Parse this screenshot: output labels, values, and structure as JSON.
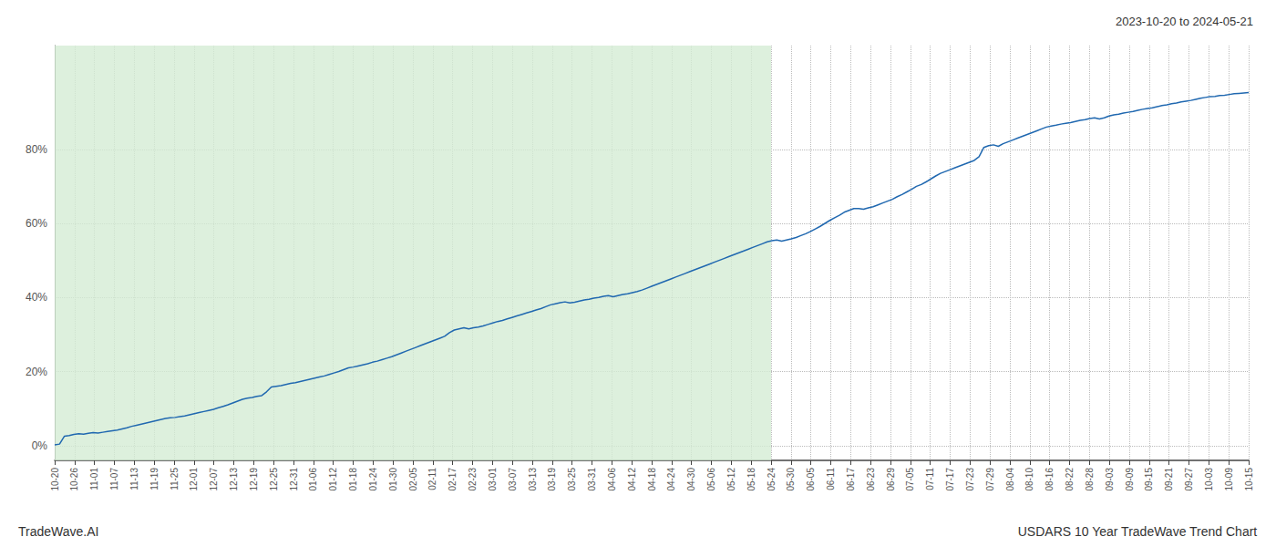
{
  "chart_data": {
    "type": "line",
    "title": "2023-10-20 to 2024-05-21",
    "annotations": [
      "TradeWave.AI",
      "USDARS 10 Year TradeWave Trend Chart"
    ],
    "color": "#2068b0",
    "grid": true,
    "shaded_region": {
      "from": 0,
      "to": 148.8,
      "color": "#d4ecd4"
    },
    "xlim": [
      0,
      248
    ],
    "xticks": [
      {
        "value": 0,
        "label": "10-20"
      },
      {
        "value": 4.133333,
        "label": "10-26"
      },
      {
        "value": 8.266667,
        "label": "11-01"
      },
      {
        "value": 12.4,
        "label": "11-07"
      },
      {
        "value": 16.533333,
        "label": "11-13"
      },
      {
        "value": 20.666667,
        "label": "11-19"
      },
      {
        "value": 24.8,
        "label": "11-25"
      },
      {
        "value": 28.933333,
        "label": "12-01"
      },
      {
        "value": 33.066667,
        "label": "12-07"
      },
      {
        "value": 37.2,
        "label": "12-13"
      },
      {
        "value": 41.333333,
        "label": "12-19"
      },
      {
        "value": 45.466667,
        "label": "12-25"
      },
      {
        "value": 49.6,
        "label": "12-31"
      },
      {
        "value": 53.733333,
        "label": "01-06"
      },
      {
        "value": 57.866667,
        "label": "01-12"
      },
      {
        "value": 62,
        "label": "01-18"
      },
      {
        "value": 66.133333,
        "label": "01-24"
      },
      {
        "value": 70.266667,
        "label": "01-30"
      },
      {
        "value": 74.4,
        "label": "02-05"
      },
      {
        "value": 78.533333,
        "label": "02-11"
      },
      {
        "value": 82.666667,
        "label": "02-17"
      },
      {
        "value": 86.8,
        "label": "02-23"
      },
      {
        "value": 90.933333,
        "label": "03-01"
      },
      {
        "value": 95.066667,
        "label": "03-07"
      },
      {
        "value": 99.2,
        "label": "03-13"
      },
      {
        "value": 103.333333,
        "label": "03-19"
      },
      {
        "value": 107.466667,
        "label": "03-25"
      },
      {
        "value": 111.6,
        "label": "03-31"
      },
      {
        "value": 115.733333,
        "label": "04-06"
      },
      {
        "value": 119.866667,
        "label": "04-12"
      },
      {
        "value": 124,
        "label": "04-18"
      },
      {
        "value": 128.133333,
        "label": "04-24"
      },
      {
        "value": 132.266667,
        "label": "04-30"
      },
      {
        "value": 136.4,
        "label": "05-06"
      },
      {
        "value": 140.533333,
        "label": "05-12"
      },
      {
        "value": 144.666667,
        "label": "05-18"
      },
      {
        "value": 148.8,
        "label": "05-24"
      },
      {
        "value": 152.933333,
        "label": "05-30"
      },
      {
        "value": 157.066667,
        "label": "06-05"
      },
      {
        "value": 161.2,
        "label": "06-11"
      },
      {
        "value": 165.333333,
        "label": "06-17"
      },
      {
        "value": 169.466667,
        "label": "06-23"
      },
      {
        "value": 173.6,
        "label": "06-29"
      },
      {
        "value": 177.733333,
        "label": "07-05"
      },
      {
        "value": 181.866667,
        "label": "07-11"
      },
      {
        "value": 186,
        "label": "07-17"
      },
      {
        "value": 190.133333,
        "label": "07-23"
      },
      {
        "value": 194.266667,
        "label": "07-29"
      },
      {
        "value": 198.4,
        "label": "08-04"
      },
      {
        "value": 202.533333,
        "label": "08-10"
      },
      {
        "value": 206.666667,
        "label": "08-16"
      },
      {
        "value": 210.8,
        "label": "08-22"
      },
      {
        "value": 214.933333,
        "label": "08-28"
      },
      {
        "value": 219.066667,
        "label": "09-03"
      },
      {
        "value": 223.2,
        "label": "09-09"
      },
      {
        "value": 227.333333,
        "label": "09-15"
      },
      {
        "value": 231.466667,
        "label": "09-21"
      },
      {
        "value": 235.6,
        "label": "09-27"
      },
      {
        "value": 239.733333,
        "label": "10-03"
      },
      {
        "value": 243.866667,
        "label": "10-09"
      },
      {
        "value": 248,
        "label": "10-15"
      }
    ],
    "ylim": [
      -4,
      108
    ],
    "yticks": [
      {
        "value": 0,
        "label": "0%"
      },
      {
        "value": 20,
        "label": "20%"
      },
      {
        "value": 40,
        "label": "40%"
      },
      {
        "value": 60,
        "label": "60%"
      },
      {
        "value": 80,
        "label": "80%"
      }
    ],
    "x": [
      0,
      1,
      2,
      3,
      4,
      5,
      6,
      7,
      8,
      9,
      10,
      11,
      12,
      13,
      14,
      15,
      16,
      17,
      18,
      19,
      20,
      21,
      22,
      23,
      24,
      25,
      26,
      27,
      28,
      29,
      30,
      31,
      32,
      33,
      34,
      35,
      36,
      37,
      38,
      39,
      40,
      41,
      42,
      43,
      44,
      45,
      46,
      47,
      48,
      49,
      50,
      51,
      52,
      53,
      54,
      55,
      56,
      57,
      58,
      59,
      60,
      61,
      62,
      63,
      64,
      65,
      66,
      67,
      68,
      69,
      70,
      71,
      72,
      73,
      74,
      75,
      76,
      77,
      78,
      79,
      80,
      81,
      82,
      83,
      84,
      85,
      86,
      87,
      88,
      89,
      90,
      91,
      92,
      93,
      94,
      95,
      96,
      97,
      98,
      99,
      100,
      101,
      102,
      103,
      104,
      105,
      106,
      107,
      108,
      109,
      110,
      111,
      112,
      113,
      114,
      115,
      116,
      117,
      118,
      119,
      120,
      121,
      122,
      123,
      124,
      125,
      126,
      127,
      128,
      129,
      130,
      131,
      132,
      133,
      134,
      135,
      136,
      137,
      138,
      139,
      140,
      141,
      142,
      143,
      144,
      145,
      146,
      147,
      148,
      149,
      150,
      151,
      152,
      153,
      154,
      155,
      156,
      157,
      158,
      159,
      160,
      161,
      162,
      163,
      164,
      165,
      166,
      167,
      168,
      169,
      170,
      171,
      172,
      173,
      174,
      175,
      176,
      177,
      178,
      179,
      180,
      181,
      182,
      183,
      184,
      185,
      186,
      187,
      188,
      189,
      190,
      191,
      192,
      193,
      194,
      195,
      196,
      197,
      198,
      199,
      200,
      201,
      202,
      203,
      204,
      205,
      206,
      207,
      208,
      209,
      210,
      211,
      212,
      213,
      214,
      215,
      216,
      217,
      218,
      219,
      220,
      221,
      222,
      223,
      224,
      225,
      226,
      227,
      228,
      229,
      230,
      231,
      232,
      233,
      234,
      235,
      236,
      237,
      238,
      239,
      240,
      241,
      242,
      243,
      244,
      245,
      246,
      247,
      248
    ],
    "values": [
      0.2,
      0.4,
      2.5,
      2.7,
      3.0,
      3.2,
      3.1,
      3.3,
      3.5,
      3.4,
      3.6,
      3.8,
      4.0,
      4.2,
      4.5,
      4.8,
      5.2,
      5.5,
      5.8,
      6.1,
      6.4,
      6.7,
      7.0,
      7.3,
      7.5,
      7.6,
      7.8,
      8.0,
      8.3,
      8.6,
      8.9,
      9.2,
      9.5,
      9.8,
      10.2,
      10.6,
      11.0,
      11.5,
      12.0,
      12.5,
      12.8,
      13.0,
      13.3,
      13.5,
      14.5,
      15.8,
      16.0,
      16.2,
      16.5,
      16.8,
      17.0,
      17.3,
      17.6,
      17.9,
      18.2,
      18.5,
      18.8,
      19.2,
      19.6,
      20.0,
      20.5,
      21.0,
      21.2,
      21.5,
      21.8,
      22.1,
      22.5,
      22.8,
      23.2,
      23.6,
      24.0,
      24.5,
      25.0,
      25.5,
      26.0,
      26.5,
      27.0,
      27.5,
      28.0,
      28.5,
      29.0,
      29.5,
      30.5,
      31.2,
      31.5,
      31.8,
      31.5,
      31.8,
      32.0,
      32.3,
      32.7,
      33.1,
      33.5,
      33.8,
      34.2,
      34.6,
      35.0,
      35.4,
      35.8,
      36.2,
      36.6,
      37.0,
      37.5,
      38.0,
      38.3,
      38.6,
      38.8,
      38.5,
      38.7,
      39.0,
      39.3,
      39.5,
      39.8,
      40.0,
      40.3,
      40.5,
      40.2,
      40.5,
      40.8,
      41.0,
      41.3,
      41.6,
      42.0,
      42.5,
      43.0,
      43.5,
      44.0,
      44.5,
      45.0,
      45.5,
      46.0,
      46.5,
      47.0,
      47.5,
      48.0,
      48.5,
      49.0,
      49.5,
      50.0,
      50.5,
      51.0,
      51.5,
      52.0,
      52.5,
      53.0,
      53.5,
      54.0,
      54.5,
      55.0,
      55.3,
      55.5,
      55.2,
      55.5,
      55.8,
      56.2,
      56.7,
      57.2,
      57.8,
      58.5,
      59.2,
      60.0,
      60.8,
      61.5,
      62.2,
      63.0,
      63.5,
      64.0,
      64.0,
      63.8,
      64.2,
      64.5,
      65.0,
      65.5,
      66.0,
      66.5,
      67.2,
      67.8,
      68.5,
      69.2,
      70.0,
      70.5,
      71.2,
      72.0,
      72.8,
      73.5,
      74.0,
      74.5,
      75.0,
      75.5,
      76.0,
      76.5,
      77.0,
      78.0,
      80.5,
      81.0,
      81.2,
      80.8,
      81.5,
      82.0,
      82.5,
      83.0,
      83.5,
      84.0,
      84.5,
      85.0,
      85.5,
      86.0,
      86.3,
      86.5,
      86.8,
      87.0,
      87.2,
      87.5,
      87.8,
      88.0,
      88.3,
      88.5,
      88.2,
      88.5,
      89.0,
      89.3,
      89.5,
      89.8,
      90.0,
      90.2,
      90.5,
      90.8,
      91.0,
      91.2,
      91.5,
      91.8,
      92.0,
      92.3,
      92.5,
      92.8,
      93.0,
      93.2,
      93.5,
      93.8,
      94.0,
      94.2,
      94.3,
      94.5,
      94.6,
      94.8,
      95.0,
      95.1,
      95.2,
      95.3
    ]
  }
}
